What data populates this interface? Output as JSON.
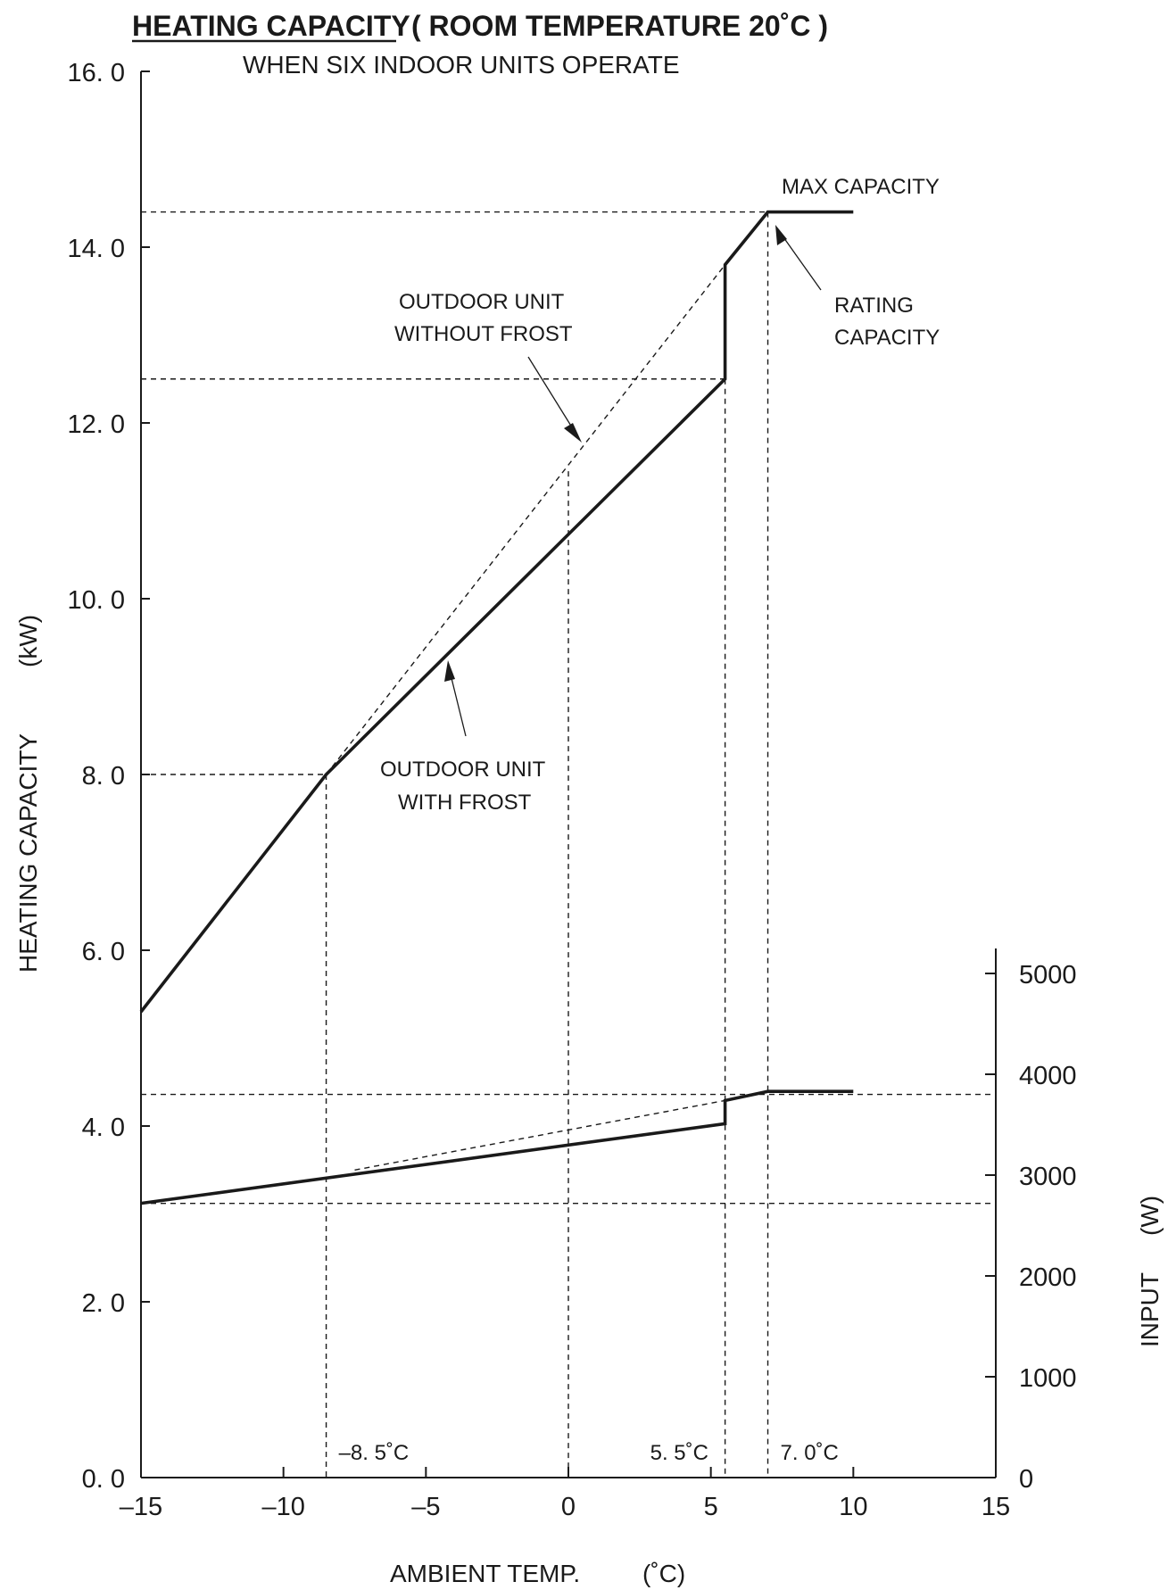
{
  "chart_data": {
    "type": "line",
    "title": "HEATING  CAPACITY",
    "title_suffix": "( ROOM TEMPERATURE 20˚C )",
    "subtitle": "WHEN  SIX   INDOOR UNITS OPERATE",
    "xlabel": "AMBIENT  TEMP.",
    "xlabel_unit": "(˚C)",
    "ylabel": "HEATING  CAPACITY",
    "ylabel_unit": "(kW)",
    "y2label": "INPUT",
    "y2label_unit": "(W)",
    "xlim": [
      -15,
      15
    ],
    "ylim": [
      0,
      16
    ],
    "y2lim": [
      0,
      5000
    ],
    "y2_axis_top_value": 5250,
    "x_ticks": [
      -15,
      -10,
      -5,
      0,
      5,
      10,
      15
    ],
    "x_tick_labels": [
      "–15",
      "–10",
      "–5",
      "0",
      "5",
      "10",
      "15"
    ],
    "y_ticks": [
      0,
      2,
      4,
      6,
      8,
      10,
      12,
      14,
      16
    ],
    "y_tick_labels": [
      "0. 0",
      "2. 0",
      "4. 0",
      "6. 0",
      "8. 0",
      "10. 0",
      "12. 0",
      "14. 0",
      "16. 0"
    ],
    "y2_ticks": [
      0,
      1000,
      2000,
      3000,
      4000,
      5000
    ],
    "y2_tick_labels": [
      "0",
      "1000",
      "2000",
      "3000",
      "4000",
      "5000"
    ],
    "series": [
      {
        "axis": "left",
        "style": "solid",
        "x": [
          -15,
          -8.5,
          5.5,
          5.5,
          7,
          10
        ],
        "y": [
          5.3,
          8.0,
          12.5,
          13.8,
          14.4,
          14.4
        ]
      },
      {
        "axis": "left",
        "style": "dashed",
        "x": [
          -8.5,
          5.5
        ],
        "y": [
          8.0,
          13.8
        ]
      },
      {
        "axis": "right",
        "style": "solid",
        "x": [
          -15,
          5.5,
          5.5,
          7,
          10
        ],
        "y": [
          2720,
          3510,
          3740,
          3830,
          3830
        ]
      },
      {
        "axis": "right",
        "style": "dashed",
        "x": [
          -7.5,
          5.5
        ],
        "y": [
          3050,
          3740
        ]
      }
    ],
    "reference_lines": {
      "horizontal_left": [
        14.4,
        12.5,
        8.0
      ],
      "horizontal_right": [
        2720,
        3800
      ],
      "vertical": [
        -8.5,
        0,
        5.5,
        7
      ]
    },
    "vertical_labels": [
      {
        "x": -8.5,
        "text": "–8. 5˚C"
      },
      {
        "x": 5.5,
        "text": "5. 5˚C"
      },
      {
        "x": 7,
        "text": "7. 0˚C"
      }
    ],
    "annotations": {
      "max_capacity": "MAX CAPACITY",
      "rating_capacity": [
        "RATING",
        "CAPACITY"
      ],
      "without_frost": [
        "OUTDOOR UNIT",
        "WITHOUT FROST"
      ],
      "with_frost": [
        "OUTDOOR UNIT",
        "WITH FROST"
      ]
    }
  }
}
